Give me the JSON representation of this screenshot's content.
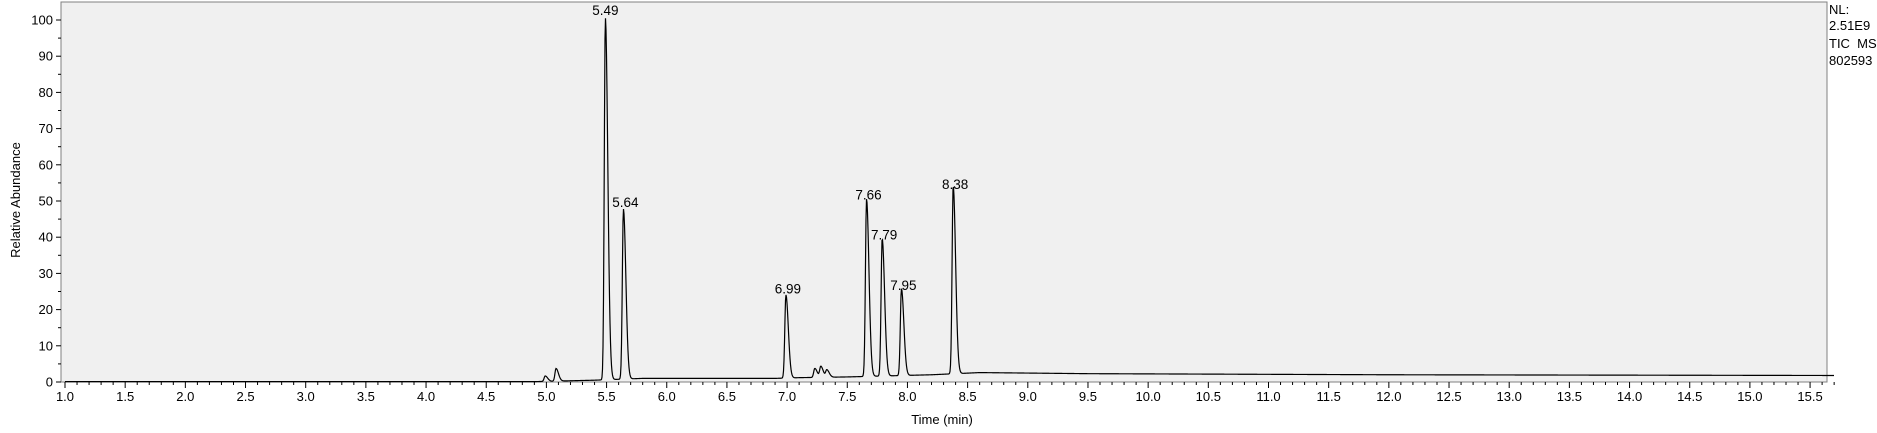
{
  "chart_data": {
    "type": "line",
    "xlabel": "Time (min)",
    "ylabel": "Relative Abundance",
    "xlim": [
      1.0,
      15.7
    ],
    "ylim": [
      0,
      100
    ],
    "x_ticks": [
      "1.0",
      "1.5",
      "2.0",
      "2.5",
      "3.0",
      "3.5",
      "4.0",
      "4.5",
      "5.0",
      "5.5",
      "6.0",
      "6.5",
      "7.0",
      "7.5",
      "8.0",
      "8.5",
      "9.0",
      "9.5",
      "10.0",
      "10.5",
      "11.0",
      "11.5",
      "12.0",
      "12.5",
      "13.0",
      "13.5",
      "14.0",
      "14.5",
      "15.0",
      "15.5"
    ],
    "y_ticks": [
      "0",
      "10",
      "20",
      "30",
      "40",
      "50",
      "60",
      "70",
      "80",
      "90",
      "100"
    ],
    "grid": false,
    "background_color": "#f0f0f0",
    "line_color": "#000000",
    "info": {
      "nl_label": "NL:",
      "nl_value": "2.51E9",
      "trace": "TIC  MS",
      "sample": "802593"
    },
    "peaks": [
      {
        "label": "5.49",
        "x": 5.49,
        "y": 100
      },
      {
        "label": "5.64",
        "x": 5.64,
        "y": 47
      },
      {
        "label": "6.99",
        "x": 6.99,
        "y": 23
      },
      {
        "label": "7.66",
        "x": 7.66,
        "y": 49
      },
      {
        "label": "7.79",
        "x": 7.79,
        "y": 38
      },
      {
        "label": "7.95",
        "x": 7.95,
        "y": 24
      },
      {
        "label": "8.38",
        "x": 8.38,
        "y": 52
      }
    ],
    "minor_peaks": [
      {
        "x": 4.99,
        "y": 1.5
      },
      {
        "x": 5.08,
        "y": 3.5
      },
      {
        "x": 7.23,
        "y": 2.5
      },
      {
        "x": 7.28,
        "y": 3
      },
      {
        "x": 7.33,
        "y": 2
      }
    ],
    "baseline": [
      {
        "x": 1.0,
        "y": 0.1
      },
      {
        "x": 4.9,
        "y": 0.1
      },
      {
        "x": 5.4,
        "y": 0.5
      },
      {
        "x": 5.8,
        "y": 1.0
      },
      {
        "x": 6.9,
        "y": 1.0
      },
      {
        "x": 7.1,
        "y": 1.2
      },
      {
        "x": 7.5,
        "y": 1.4
      },
      {
        "x": 8.2,
        "y": 2.0
      },
      {
        "x": 8.6,
        "y": 2.6
      },
      {
        "x": 9.5,
        "y": 2.3
      },
      {
        "x": 12.0,
        "y": 2.0
      },
      {
        "x": 15.7,
        "y": 1.8
      }
    ]
  }
}
